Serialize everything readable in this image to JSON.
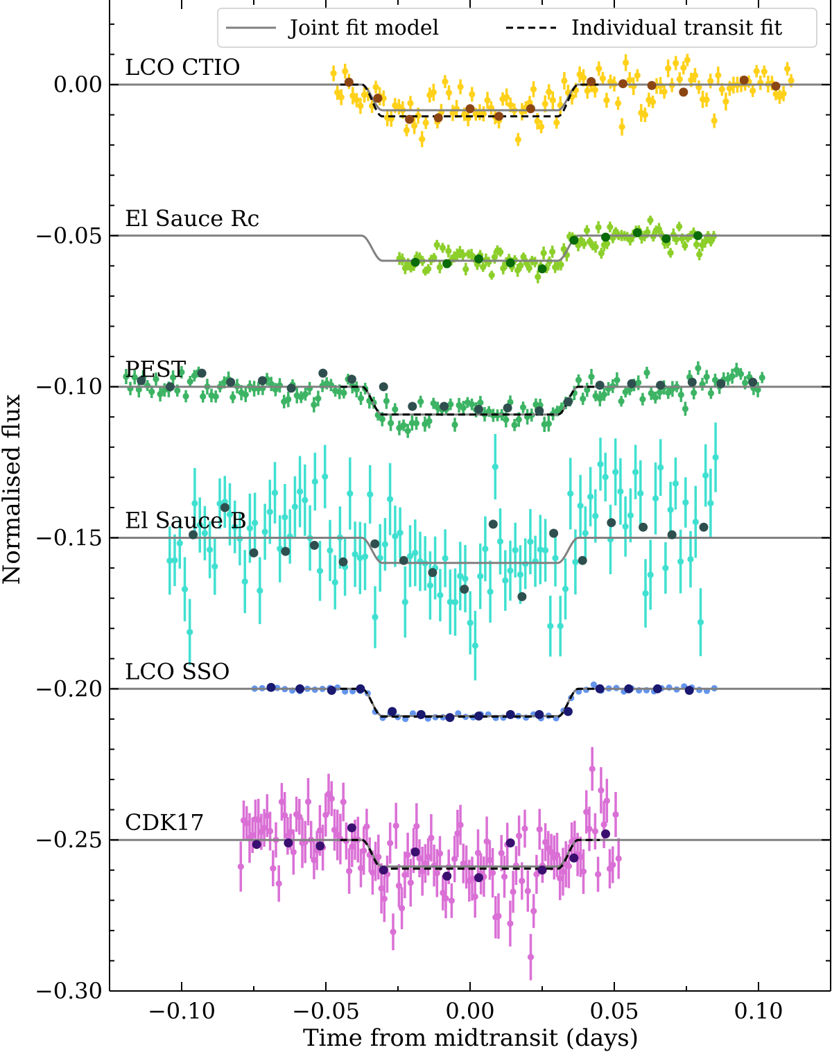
{
  "chart_data": {
    "type": "scatter",
    "title": "",
    "xlabel": "Time from midtransit (days)",
    "ylabel": "Normalised flux",
    "xlim": [
      -0.125,
      0.125
    ],
    "ylim": [
      -0.3,
      0.028
    ],
    "xticks": [
      {
        "value": -0.1,
        "label": "−0.10"
      },
      {
        "value": -0.05,
        "label": "−0.05"
      },
      {
        "value": 0.0,
        "label": "0.00"
      },
      {
        "value": 0.05,
        "label": "0.05"
      },
      {
        "value": 0.1,
        "label": "0.10"
      }
    ],
    "yticks": [
      {
        "value": 0.0,
        "label": "0.00"
      },
      {
        "value": -0.05,
        "label": "−0.05"
      },
      {
        "value": -0.1,
        "label": "−0.10"
      },
      {
        "value": -0.15,
        "label": "−0.15"
      },
      {
        "value": -0.2,
        "label": "−0.20"
      },
      {
        "value": -0.25,
        "label": "−0.25"
      },
      {
        "value": -0.3,
        "label": "−0.30"
      }
    ],
    "grid": false,
    "legend": {
      "position": "top-right",
      "entries": [
        {
          "label": "Joint fit model",
          "style": "solid",
          "color": "#808080"
        },
        {
          "label": "Individual transit fit",
          "style": "dashed",
          "color": "#000000"
        }
      ]
    },
    "transit_model": {
      "t1": -0.0375,
      "t2": -0.0305,
      "t3": 0.0305,
      "t4": 0.0375
    },
    "series": [
      {
        "name": "LCO CTIO",
        "offset": 0.0,
        "depth": 0.0085,
        "individual_depth": 0.0105,
        "individual_fit": true,
        "point_color": "#ffd11a",
        "binned_color": "#8b4513",
        "x_range": [
          -0.048,
          0.112
        ],
        "scatter": 0.004,
        "err": 0.0025,
        "n_points": 120,
        "binned": [
          {
            "x": -0.042,
            "y": 0.0008
          },
          {
            "x": -0.032,
            "y": -0.0045
          },
          {
            "x": -0.021,
            "y": -0.0115
          },
          {
            "x": -0.011,
            "y": -0.011
          },
          {
            "x": 0.0,
            "y": -0.008
          },
          {
            "x": 0.01,
            "y": -0.0105
          },
          {
            "x": 0.021,
            "y": -0.008
          },
          {
            "x": 0.042,
            "y": 0.001
          },
          {
            "x": 0.053,
            "y": 0.0003
          },
          {
            "x": 0.063,
            "y": -0.0003
          },
          {
            "x": 0.074,
            "y": -0.0025
          },
          {
            "x": 0.095,
            "y": 0.0015
          },
          {
            "x": 0.106,
            "y": -0.0005
          }
        ]
      },
      {
        "name": "El Sauce Rc",
        "offset": -0.05,
        "depth": 0.0083,
        "individual_depth": 0.0083,
        "individual_fit": false,
        "point_color": "#8ccf2a",
        "binned_color": "#0a6b0a",
        "x_range": [
          -0.025,
          0.085
        ],
        "scatter": 0.0022,
        "err": 0.0018,
        "n_points": 110,
        "binned": [
          {
            "x": -0.019,
            "y": -0.0588
          },
          {
            "x": -0.008,
            "y": -0.0593
          },
          {
            "x": 0.003,
            "y": -0.0577
          },
          {
            "x": 0.014,
            "y": -0.059
          },
          {
            "x": 0.025,
            "y": -0.061
          },
          {
            "x": 0.036,
            "y": -0.0515
          },
          {
            "x": 0.047,
            "y": -0.0505
          },
          {
            "x": 0.058,
            "y": -0.049
          },
          {
            "x": 0.068,
            "y": -0.051
          },
          {
            "x": 0.079,
            "y": -0.05
          }
        ]
      },
      {
        "name": "PEST",
        "offset": -0.1,
        "depth": 0.0092,
        "individual_depth": 0.0092,
        "individual_fit": true,
        "point_color": "#3cb464",
        "binned_color": "#2f4f4f",
        "x_range": [
          -0.12,
          0.102
        ],
        "scatter": 0.0028,
        "err": 0.0022,
        "n_points": 150,
        "binned": [
          {
            "x": -0.114,
            "y": -0.098
          },
          {
            "x": -0.104,
            "y": -0.1
          },
          {
            "x": -0.093,
            "y": -0.0955
          },
          {
            "x": -0.083,
            "y": -0.0985
          },
          {
            "x": -0.072,
            "y": -0.098
          },
          {
            "x": -0.062,
            "y": -0.1005
          },
          {
            "x": -0.051,
            "y": -0.0955
          },
          {
            "x": -0.041,
            "y": -0.0975
          },
          {
            "x": -0.03,
            "y": -0.1
          },
          {
            "x": -0.02,
            "y": -0.1065
          },
          {
            "x": -0.009,
            "y": -0.1065
          },
          {
            "x": 0.003,
            "y": -0.1075
          },
          {
            "x": 0.013,
            "y": -0.107
          },
          {
            "x": 0.024,
            "y": -0.108
          },
          {
            "x": 0.034,
            "y": -0.105
          },
          {
            "x": 0.045,
            "y": -0.0995
          },
          {
            "x": 0.056,
            "y": -0.099
          },
          {
            "x": 0.066,
            "y": -0.0995
          },
          {
            "x": 0.077,
            "y": -0.0985
          },
          {
            "x": 0.087,
            "y": -0.099
          },
          {
            "x": 0.098,
            "y": -0.0985
          }
        ]
      },
      {
        "name": "El Sauce B",
        "offset": -0.15,
        "depth": 0.0083,
        "individual_depth": 0.0083,
        "individual_fit": false,
        "point_color": "#40e0d0",
        "binned_color": "#2f4f4f",
        "x_range": [
          -0.105,
          0.086
        ],
        "scatter": 0.013,
        "err": 0.01,
        "n_points": 110,
        "binned": [
          {
            "x": -0.096,
            "y": -0.149
          },
          {
            "x": -0.085,
            "y": -0.14
          },
          {
            "x": -0.075,
            "y": -0.155
          },
          {
            "x": -0.064,
            "y": -0.1545
          },
          {
            "x": -0.054,
            "y": -0.1525
          },
          {
            "x": -0.044,
            "y": -0.158
          },
          {
            "x": -0.033,
            "y": -0.152
          },
          {
            "x": -0.023,
            "y": -0.1575
          },
          {
            "x": -0.013,
            "y": -0.1615
          },
          {
            "x": -0.002,
            "y": -0.167
          },
          {
            "x": 0.008,
            "y": -0.1455
          },
          {
            "x": 0.018,
            "y": -0.1695
          },
          {
            "x": 0.029,
            "y": -0.1485
          },
          {
            "x": 0.039,
            "y": -0.1575
          },
          {
            "x": 0.049,
            "y": -0.145
          },
          {
            "x": 0.06,
            "y": -0.1465
          },
          {
            "x": 0.07,
            "y": -0.149
          },
          {
            "x": 0.081,
            "y": -0.1465
          }
        ]
      },
      {
        "name": "LCO SSO",
        "offset": -0.2,
        "depth": 0.009,
        "individual_depth": 0.0092,
        "individual_fit": true,
        "point_color": "#6495ed",
        "binned_color": "#191970",
        "x_range": [
          -0.076,
          0.086
        ],
        "scatter": 0.0006,
        "err": 0.0005,
        "n_points": 62,
        "binned": [
          {
            "x": -0.069,
            "y": -0.1995
          },
          {
            "x": -0.059,
            "y": -0.2
          },
          {
            "x": -0.048,
            "y": -0.2005
          },
          {
            "x": -0.038,
            "y": -0.2
          },
          {
            "x": -0.027,
            "y": -0.2075
          },
          {
            "x": -0.017,
            "y": -0.2085
          },
          {
            "x": -0.007,
            "y": -0.2095
          },
          {
            "x": 0.003,
            "y": -0.209
          },
          {
            "x": 0.014,
            "y": -0.2085
          },
          {
            "x": 0.024,
            "y": -0.2085
          },
          {
            "x": 0.034,
            "y": -0.2075
          },
          {
            "x": 0.045,
            "y": -0.2
          },
          {
            "x": 0.055,
            "y": -0.2
          },
          {
            "x": 0.065,
            "y": -0.2
          },
          {
            "x": 0.076,
            "y": -0.2005
          }
        ]
      },
      {
        "name": "CDK17",
        "offset": -0.25,
        "depth": 0.0088,
        "individual_depth": 0.0095,
        "individual_fit": true,
        "point_color": "#da70d6",
        "binned_color": "#3b0f70",
        "x_range": [
          -0.08,
          0.052
        ],
        "scatter": 0.008,
        "err": 0.007,
        "n_points": 130,
        "binned": [
          {
            "x": -0.074,
            "y": -0.2515
          },
          {
            "x": -0.063,
            "y": -0.251
          },
          {
            "x": -0.052,
            "y": -0.252
          },
          {
            "x": -0.041,
            "y": -0.246
          },
          {
            "x": -0.03,
            "y": -0.26
          },
          {
            "x": -0.019,
            "y": -0.254
          },
          {
            "x": -0.008,
            "y": -0.262
          },
          {
            "x": 0.003,
            "y": -0.2625
          },
          {
            "x": 0.014,
            "y": -0.251
          },
          {
            "x": 0.025,
            "y": -0.26
          },
          {
            "x": 0.036,
            "y": -0.256
          },
          {
            "x": 0.047,
            "y": -0.248
          }
        ]
      }
    ]
  }
}
